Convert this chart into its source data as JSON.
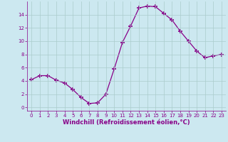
{
  "x": [
    0,
    1,
    2,
    3,
    4,
    5,
    6,
    7,
    8,
    9,
    10,
    11,
    12,
    13,
    14,
    15,
    16,
    17,
    18,
    19,
    20,
    21,
    22,
    23
  ],
  "y": [
    4.2,
    4.8,
    4.8,
    4.1,
    3.7,
    2.7,
    1.5,
    0.6,
    0.7,
    2.0,
    5.8,
    9.8,
    12.3,
    15.0,
    15.3,
    15.2,
    14.2,
    13.2,
    11.5,
    10.0,
    8.5,
    7.5,
    7.8,
    8.0
  ],
  "line_color": "#880088",
  "marker": "+",
  "marker_size": 4,
  "marker_lw": 1.2,
  "bg_color": "#cce8f0",
  "grid_color": "#aacccc",
  "xlabel": "Windchill (Refroidissement éolien,°C)",
  "xlabel_color": "#880088",
  "tick_color": "#880088",
  "ylim": [
    -0.5,
    16
  ],
  "xlim": [
    -0.5,
    23.5
  ],
  "yticks": [
    0,
    2,
    4,
    6,
    8,
    10,
    12,
    14
  ],
  "xticks": [
    0,
    1,
    2,
    3,
    4,
    5,
    6,
    7,
    8,
    9,
    10,
    11,
    12,
    13,
    14,
    15,
    16,
    17,
    18,
    19,
    20,
    21,
    22,
    23
  ],
  "xtick_labels": [
    "0",
    "1",
    "2",
    "3",
    "4",
    "5",
    "6",
    "7",
    "8",
    "9",
    "10",
    "11",
    "12",
    "13",
    "14",
    "15",
    "16",
    "17",
    "18",
    "19",
    "20",
    "21",
    "22",
    "23"
  ]
}
